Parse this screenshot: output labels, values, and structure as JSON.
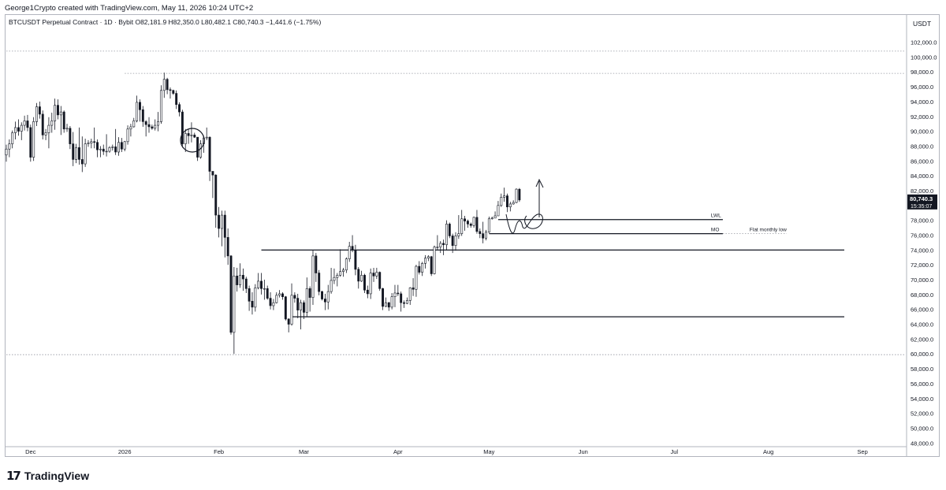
{
  "header": {
    "attribution": "George1Crypto created with TradingView.com, May 11, 2026 10:24 UTC+2"
  },
  "legend": {
    "symbol": "BTCUSDT Perpetual Contract · 1D · Bybit",
    "ohlc": "O82,181.9  H82,350.0  L80,482.1  C80,740.3  −1,441.6 (−1.75%)"
  },
  "footer": {
    "brand": "TradingView",
    "logo": "17"
  },
  "colors": {
    "up": "#131722",
    "down": "#131722",
    "grid": "#b2b5be",
    "badge": "#131722"
  },
  "chart_data": {
    "type": "candlestick",
    "title": "BTCUSDT Perpetual Contract · 1D · Bybit",
    "currency": "USDT",
    "ylim": [
      47500,
      104500
    ],
    "y_ticks": [
      48000,
      50000,
      52000,
      54000,
      56000,
      58000,
      60000,
      62000,
      64000,
      66000,
      68000,
      70000,
      72000,
      74000,
      76000,
      78000,
      80000,
      82000,
      84000,
      86000,
      88000,
      90000,
      92000,
      94000,
      96000,
      98000,
      100000,
      102000
    ],
    "y_tick_labels": [
      "48,000.0",
      "50,000.0",
      "52,000.0",
      "54,000.0",
      "56,000.0",
      "58,000.0",
      "60,000.0",
      "62,000.0",
      "64,000.0",
      "66,000.0",
      "68,000.0",
      "70,000.0",
      "72,000.0",
      "74,000.0",
      "76,000.0",
      "78,000.0",
      "80,000.0",
      "82,000.0",
      "84,000.0",
      "86,000.0",
      "88,000.0",
      "90,000.0",
      "92,000.0",
      "94,000.0",
      "96,000.0",
      "98,000.0",
      "100,000.0",
      "102,000.0"
    ],
    "x_range": [
      "2025-11-23",
      "2026-09-15"
    ],
    "x_ticks": [
      "2025-12-01",
      "2026-01-01",
      "2026-02-01",
      "2026-03-01",
      "2026-04-01",
      "2026-05-01",
      "2026-06-01",
      "2026-07-01",
      "2026-08-01",
      "2026-09-01"
    ],
    "x_tick_labels": [
      "Dec",
      "2026",
      "Feb",
      "Mar",
      "Apr",
      "May",
      "Jun",
      "Jul",
      "Aug",
      "Sep"
    ],
    "last_price": {
      "value": 80740.3,
      "label": "80,740.3",
      "countdown": "15:35:07"
    },
    "candles": [
      [
        "2025-11-23",
        86800,
        88200,
        85900,
        87600
      ],
      [
        "2025-11-24",
        87600,
        88900,
        86500,
        88300
      ],
      [
        "2025-11-25",
        88300,
        90100,
        87700,
        89800
      ],
      [
        "2025-11-26",
        89800,
        91300,
        88900,
        90500
      ],
      [
        "2025-11-27",
        90500,
        91600,
        89400,
        90000
      ],
      [
        "2025-11-28",
        90000,
        91200,
        88800,
        90800
      ],
      [
        "2025-11-29",
        90800,
        92100,
        90100,
        91400
      ],
      [
        "2025-11-30",
        91400,
        92200,
        90000,
        90500
      ],
      [
        "2025-12-01",
        90500,
        90900,
        85900,
        86500
      ],
      [
        "2025-12-02",
        86500,
        91900,
        86000,
        91300
      ],
      [
        "2025-12-03",
        91300,
        93800,
        90700,
        93300
      ],
      [
        "2025-12-04",
        93300,
        94000,
        91700,
        92300
      ],
      [
        "2025-12-05",
        92300,
        92800,
        88900,
        89500
      ],
      [
        "2025-12-06",
        89500,
        90300,
        88800,
        89800
      ],
      [
        "2025-12-07",
        89800,
        91900,
        87700,
        90800
      ],
      [
        "2025-12-08",
        90800,
        92500,
        89800,
        91400
      ],
      [
        "2025-12-09",
        91400,
        94400,
        90200,
        93500
      ],
      [
        "2025-12-10",
        93500,
        94300,
        91600,
        92200
      ],
      [
        "2025-12-11",
        92200,
        93400,
        89500,
        92600
      ],
      [
        "2025-12-12",
        92600,
        92800,
        89800,
        90300
      ],
      [
        "2025-12-13",
        90300,
        91000,
        89900,
        90400
      ],
      [
        "2025-12-14",
        90400,
        90700,
        87600,
        88300
      ],
      [
        "2025-12-15",
        88300,
        89900,
        85300,
        86200
      ],
      [
        "2025-12-16",
        86200,
        88300,
        85700,
        87800
      ],
      [
        "2025-12-17",
        87800,
        90500,
        85500,
        86200
      ],
      [
        "2025-12-18",
        86200,
        89300,
        84500,
        85600
      ],
      [
        "2025-12-19",
        85600,
        89000,
        85200,
        88300
      ],
      [
        "2025-12-20",
        88300,
        88800,
        87900,
        88400
      ],
      [
        "2025-12-21",
        88400,
        89000,
        87700,
        88600
      ],
      [
        "2025-12-22",
        88600,
        90500,
        87700,
        88500
      ],
      [
        "2025-12-23",
        88500,
        88900,
        86500,
        87500
      ],
      [
        "2025-12-24",
        87500,
        88000,
        86500,
        87600
      ],
      [
        "2025-12-25",
        87600,
        88200,
        86800,
        87300
      ],
      [
        "2025-12-26",
        87300,
        89600,
        86600,
        87300
      ],
      [
        "2025-12-27",
        87300,
        88000,
        87100,
        87800
      ],
      [
        "2025-12-28",
        87800,
        88200,
        87400,
        87900
      ],
      [
        "2025-12-29",
        87900,
        90300,
        86800,
        87200
      ],
      [
        "2025-12-30",
        87200,
        89200,
        86700,
        88500
      ],
      [
        "2025-12-31",
        88500,
        89100,
        87200,
        87600
      ],
      [
        "2026-01-01",
        87600,
        88700,
        87300,
        88600
      ],
      [
        "2026-01-02",
        88600,
        90800,
        88200,
        90300
      ],
      [
        "2026-01-03",
        90300,
        91000,
        89300,
        90600
      ],
      [
        "2026-01-04",
        90600,
        91800,
        90500,
        91400
      ],
      [
        "2026-01-05",
        91400,
        94800,
        91200,
        93900
      ],
      [
        "2026-01-06",
        93900,
        94300,
        91300,
        92900
      ],
      [
        "2026-01-07",
        92900,
        93400,
        90600,
        91300
      ],
      [
        "2026-01-08",
        91300,
        91500,
        89300,
        90900
      ],
      [
        "2026-01-09",
        90900,
        91900,
        89800,
        90600
      ],
      [
        "2026-01-10",
        90600,
        90900,
        90200,
        90400
      ],
      [
        "2026-01-11",
        90400,
        91600,
        90100,
        90800
      ],
      [
        "2026-01-12",
        90800,
        92600,
        90000,
        91300
      ],
      [
        "2026-01-13",
        91300,
        96200,
        91000,
        95500
      ],
      [
        "2026-01-14",
        95500,
        97900,
        94500,
        97000
      ],
      [
        "2026-01-15",
        97000,
        97200,
        95000,
        95600
      ],
      [
        "2026-01-16",
        95600,
        95900,
        94400,
        95500
      ],
      [
        "2026-01-17",
        95500,
        95600,
        94900,
        95100
      ],
      [
        "2026-01-18",
        95100,
        95500,
        93000,
        93600
      ],
      [
        "2026-01-19",
        93600,
        93900,
        92000,
        92600
      ],
      [
        "2026-01-20",
        92600,
        92900,
        87800,
        88300
      ],
      [
        "2026-01-21",
        88300,
        90300,
        87200,
        89700
      ],
      [
        "2026-01-22",
        89700,
        90300,
        88300,
        89400
      ],
      [
        "2026-01-23",
        89400,
        91200,
        88500,
        89500
      ],
      [
        "2026-01-24",
        89500,
        89800,
        89100,
        89200
      ],
      [
        "2026-01-25",
        89200,
        89200,
        86000,
        86500
      ],
      [
        "2026-01-26",
        86500,
        88800,
        86300,
        88300
      ],
      [
        "2026-01-27",
        88300,
        89400,
        87100,
        89100
      ],
      [
        "2026-01-28",
        89100,
        90500,
        88800,
        89200
      ],
      [
        "2026-01-29",
        89200,
        89300,
        83300,
        84600
      ],
      [
        "2026-01-30",
        84600,
        84600,
        81000,
        84100
      ],
      [
        "2026-01-31",
        84100,
        84200,
        77000,
        78700
      ],
      [
        "2026-02-01",
        78700,
        79800,
        75700,
        76900
      ],
      [
        "2026-02-02",
        76900,
        79300,
        74500,
        78700
      ],
      [
        "2026-02-03",
        78700,
        79300,
        73000,
        75700
      ],
      [
        "2026-02-04",
        75700,
        76900,
        72000,
        73200
      ],
      [
        "2026-02-05",
        73200,
        73300,
        62600,
        62900
      ],
      [
        "2026-02-06",
        62900,
        71700,
        60000,
        70500
      ],
      [
        "2026-02-07",
        70500,
        71600,
        68400,
        69300
      ],
      [
        "2026-02-08",
        69300,
        72200,
        68900,
        70600
      ],
      [
        "2026-02-09",
        70600,
        71500,
        68500,
        70100
      ],
      [
        "2026-02-10",
        70100,
        70400,
        68200,
        68800
      ],
      [
        "2026-02-11",
        68800,
        69200,
        65800,
        67100
      ],
      [
        "2026-02-12",
        67100,
        68300,
        65300,
        66300
      ],
      [
        "2026-02-13",
        66300,
        69400,
        65700,
        68900
      ],
      [
        "2026-02-14",
        68900,
        70900,
        68700,
        69800
      ],
      [
        "2026-02-15",
        69800,
        70900,
        68000,
        68800
      ],
      [
        "2026-02-16",
        68800,
        70000,
        67300,
        68800
      ],
      [
        "2026-02-17",
        68800,
        69200,
        67300,
        67500
      ],
      [
        "2026-02-18",
        67500,
        68300,
        66000,
        66500
      ],
      [
        "2026-02-19",
        66500,
        67400,
        65900,
        66900
      ],
      [
        "2026-02-20",
        66900,
        68300,
        66800,
        67900
      ],
      [
        "2026-02-21",
        67900,
        68600,
        67600,
        68100
      ],
      [
        "2026-02-22",
        68100,
        68300,
        67300,
        67700
      ],
      [
        "2026-02-23",
        67700,
        67800,
        64500,
        64700
      ],
      [
        "2026-02-24",
        64700,
        64800,
        62900,
        64000
      ],
      [
        "2026-02-25",
        64000,
        69500,
        63800,
        67900
      ],
      [
        "2026-02-26",
        67900,
        68300,
        66900,
        67500
      ],
      [
        "2026-02-27",
        67500,
        68100,
        64800,
        65900
      ],
      [
        "2026-02-28",
        65900,
        67300,
        63300,
        66900
      ],
      [
        "2026-03-01",
        66900,
        67200,
        64700,
        65600
      ],
      [
        "2026-03-02",
        65600,
        70300,
        65000,
        68800
      ],
      [
        "2026-03-03",
        68800,
        69100,
        65700,
        67600
      ],
      [
        "2026-03-04",
        67600,
        74000,
        66600,
        73200
      ],
      [
        "2026-03-05",
        73200,
        73600,
        69700,
        70900
      ],
      [
        "2026-03-06",
        70900,
        71300,
        67900,
        68400
      ],
      [
        "2026-03-07",
        68400,
        68500,
        67200,
        67400
      ],
      [
        "2026-03-08",
        67400,
        68100,
        65900,
        67000
      ],
      [
        "2026-03-09",
        67000,
        69300,
        66000,
        68400
      ],
      [
        "2026-03-10",
        68400,
        71600,
        68100,
        69900
      ],
      [
        "2026-03-11",
        69900,
        71500,
        69400,
        70300
      ],
      [
        "2026-03-12",
        70300,
        70900,
        69100,
        70600
      ],
      [
        "2026-03-13",
        70600,
        74100,
        70400,
        71100
      ],
      [
        "2026-03-14",
        71100,
        71600,
        70400,
        71300
      ],
      [
        "2026-03-15",
        71300,
        73000,
        70900,
        72800
      ],
      [
        "2026-03-16",
        72800,
        75100,
        72400,
        74500
      ],
      [
        "2026-03-17",
        74500,
        76000,
        73700,
        74000
      ],
      [
        "2026-03-18",
        74000,
        74700,
        70600,
        71400
      ],
      [
        "2026-03-19",
        71400,
        71700,
        68800,
        69800
      ],
      [
        "2026-03-20",
        69800,
        71200,
        69700,
        70600
      ],
      [
        "2026-03-21",
        70600,
        70800,
        68200,
        68600
      ],
      [
        "2026-03-22",
        68600,
        69200,
        67500,
        68100
      ],
      [
        "2026-03-23",
        68100,
        71500,
        67400,
        70900
      ],
      [
        "2026-03-24",
        70900,
        71600,
        69700,
        70500
      ],
      [
        "2026-03-25",
        70500,
        71600,
        70100,
        71000
      ],
      [
        "2026-03-26",
        71000,
        71100,
        68500,
        68800
      ],
      [
        "2026-03-27",
        68800,
        68900,
        65900,
        66400
      ],
      [
        "2026-03-28",
        66400,
        67600,
        66300,
        66900
      ],
      [
        "2026-03-29",
        66900,
        67000,
        65800,
        66300
      ],
      [
        "2026-03-30",
        66300,
        68200,
        66000,
        67700
      ],
      [
        "2026-03-31",
        67700,
        69300,
        66300,
        68200
      ],
      [
        "2026-04-01",
        68200,
        69300,
        67800,
        68100
      ],
      [
        "2026-04-02",
        68100,
        68400,
        65700,
        66900
      ],
      [
        "2026-04-03",
        66900,
        67200,
        66200,
        66800
      ],
      [
        "2026-04-04",
        66800,
        67600,
        66700,
        67200
      ],
      [
        "2026-04-05",
        67200,
        69000,
        66600,
        68900
      ],
      [
        "2026-04-06",
        68900,
        70200,
        67800,
        68700
      ],
      [
        "2026-04-07",
        68700,
        72000,
        67700,
        71800
      ],
      [
        "2026-04-08",
        71800,
        72500,
        70700,
        71000
      ],
      [
        "2026-04-09",
        71000,
        72400,
        70500,
        72200
      ],
      [
        "2026-04-10",
        72200,
        73300,
        71500,
        72900
      ],
      [
        "2026-04-11",
        72900,
        73300,
        72500,
        73100
      ],
      [
        "2026-04-12",
        73100,
        73200,
        70500,
        70800
      ],
      [
        "2026-04-13",
        70800,
        74600,
        70700,
        74400
      ],
      [
        "2026-04-14",
        74400,
        76000,
        74000,
        74400
      ],
      [
        "2026-04-15",
        74400,
        75200,
        73600,
        74900
      ],
      [
        "2026-04-16",
        74900,
        75400,
        73300,
        74700
      ],
      [
        "2026-04-17",
        74700,
        78000,
        74000,
        77500
      ],
      [
        "2026-04-18",
        77500,
        77700,
        75600,
        75900
      ],
      [
        "2026-04-19",
        75900,
        76200,
        73600,
        74600
      ],
      [
        "2026-04-20",
        74600,
        76400,
        73900,
        75900
      ],
      [
        "2026-04-21",
        75900,
        78700,
        75500,
        76200
      ],
      [
        "2026-04-22",
        76200,
        79400,
        75900,
        78200
      ],
      [
        "2026-04-23",
        78200,
        78600,
        76600,
        77900
      ],
      [
        "2026-04-24",
        77900,
        78100,
        77000,
        77500
      ],
      [
        "2026-04-25",
        77500,
        77700,
        77000,
        77300
      ],
      [
        "2026-04-26",
        77300,
        78500,
        77000,
        78400
      ],
      [
        "2026-04-27",
        78400,
        79400,
        76200,
        76500
      ],
      [
        "2026-04-28",
        76500,
        76900,
        75600,
        76200
      ],
      [
        "2026-04-29",
        76200,
        77800,
        74900,
        75600
      ],
      [
        "2026-04-30",
        75600,
        76700,
        75300,
        76400
      ],
      [
        "2026-05-01",
        76400,
        78500,
        76300,
        78200
      ],
      [
        "2026-05-02",
        78200,
        78500,
        78100,
        78300
      ],
      [
        "2026-05-03",
        78300,
        79200,
        78300,
        78600
      ],
      [
        "2026-05-04",
        78600,
        80600,
        78600,
        80000
      ],
      [
        "2026-05-05",
        80000,
        81600,
        79800,
        81100
      ],
      [
        "2026-05-06",
        81100,
        82400,
        80500,
        81300
      ],
      [
        "2026-05-07",
        81300,
        81600,
        79100,
        79800
      ],
      [
        "2026-05-08",
        79800,
        80500,
        79200,
        80200
      ],
      [
        "2026-05-09",
        80200,
        80700,
        80100,
        80400
      ],
      [
        "2026-05-10",
        80400,
        82300,
        80300,
        82200
      ],
      [
        "2026-05-11",
        82181.9,
        82350,
        80482.1,
        80740.3
      ]
    ],
    "levels": [
      {
        "label": "",
        "price": 97800,
        "style": "dotted",
        "from": "2026-01-01",
        "to": "2026-09-15"
      },
      {
        "label": "",
        "price": 100800,
        "style": "dotted",
        "from": "2025-11-23",
        "to": "2026-09-15"
      },
      {
        "label": "",
        "price": 59900,
        "style": "dotted",
        "from": "2025-11-23",
        "to": "2026-09-15"
      },
      {
        "label": "",
        "price": 74000,
        "style": "solid",
        "from": "2026-02-15",
        "to": "2026-08-26"
      },
      {
        "label": "",
        "price": 65000,
        "style": "solid",
        "from": "2026-02-25",
        "to": "2026-08-26"
      },
      {
        "label": "LWL",
        "price": 78100,
        "style": "solid",
        "from": "2026-05-04",
        "to": "2026-07-17"
      },
      {
        "label": "MO",
        "price": 76200,
        "style": "solid",
        "from": "2026-05-01",
        "to": "2026-07-17"
      },
      {
        "label": "Flat monthly low",
        "price": 76200,
        "style": "dotted",
        "from": "2026-07-17",
        "to": "2026-08-07"
      }
    ]
  }
}
